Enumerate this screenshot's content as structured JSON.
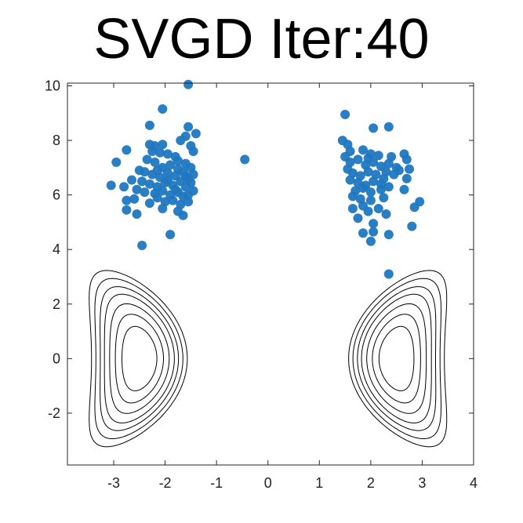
{
  "chart_data": {
    "type": "scatter",
    "title": "SVGD Iter:40",
    "xlabel": "",
    "ylabel": "",
    "xlim": [
      -3.9,
      4.0
    ],
    "ylim": [
      -3.9,
      10.1
    ],
    "xticks": [
      -3,
      -2,
      -1,
      0,
      1,
      2,
      3,
      4
    ],
    "yticks": [
      -2,
      0,
      2,
      4,
      6,
      8,
      10
    ],
    "grid": false,
    "legend": "none",
    "point_color": "#1f77c0",
    "contour_color": "#000000",
    "contour": {
      "description": "two banana-shaped density contour sets",
      "centers_x": [
        -2.5,
        2.5
      ],
      "levels": [
        1.0,
        1.9,
        2.9,
        4.0,
        5.0,
        6.2,
        7.5
      ]
    },
    "points": [
      [
        -1.55,
        10.05
      ],
      [
        -2.05,
        9.15
      ],
      [
        -2.3,
        8.55
      ],
      [
        -1.55,
        8.5
      ],
      [
        -1.4,
        8.25
      ],
      [
        -1.6,
        8.15
      ],
      [
        -2.75,
        7.65
      ],
      [
        -2.95,
        7.2
      ],
      [
        -2.3,
        7.85
      ],
      [
        -2.2,
        7.8
      ],
      [
        -2.05,
        7.85
      ],
      [
        -2.1,
        7.55
      ],
      [
        -2.25,
        7.6
      ],
      [
        -1.95,
        7.5
      ],
      [
        -1.8,
        7.4
      ],
      [
        -1.7,
        8.0
      ],
      [
        -1.5,
        7.8
      ],
      [
        -1.45,
        7.6
      ],
      [
        -2.35,
        7.3
      ],
      [
        -2.2,
        7.2
      ],
      [
        -2.05,
        7.0
      ],
      [
        -1.9,
        7.1
      ],
      [
        -1.75,
        7.25
      ],
      [
        -1.6,
        7.15
      ],
      [
        -1.5,
        7.0
      ],
      [
        -2.5,
        6.9
      ],
      [
        -2.4,
        6.85
      ],
      [
        -2.25,
        6.75
      ],
      [
        -2.1,
        6.65
      ],
      [
        -1.95,
        6.8
      ],
      [
        -1.8,
        6.7
      ],
      [
        -1.65,
        6.85
      ],
      [
        -1.55,
        6.6
      ],
      [
        -1.45,
        6.75
      ],
      [
        -2.65,
        6.55
      ],
      [
        -2.45,
        6.5
      ],
      [
        -2.3,
        6.4
      ],
      [
        -2.15,
        6.3
      ],
      [
        -2.0,
        6.45
      ],
      [
        -1.85,
        6.35
      ],
      [
        -1.7,
        6.5
      ],
      [
        -1.6,
        6.3
      ],
      [
        -1.5,
        6.45
      ],
      [
        -3.05,
        6.35
      ],
      [
        -2.8,
        6.3
      ],
      [
        -2.55,
        6.2
      ],
      [
        -2.4,
        6.1
      ],
      [
        -2.2,
        6.05
      ],
      [
        -2.05,
        6.15
      ],
      [
        -1.9,
        6.0
      ],
      [
        -1.75,
        6.1
      ],
      [
        -1.65,
        5.95
      ],
      [
        -1.55,
        6.0
      ],
      [
        -1.45,
        6.15
      ],
      [
        -2.75,
        5.8
      ],
      [
        -2.6,
        5.85
      ],
      [
        -2.3,
        5.7
      ],
      [
        -2.15,
        5.9
      ],
      [
        -2.0,
        5.75
      ],
      [
        -1.85,
        5.8
      ],
      [
        -1.7,
        5.65
      ],
      [
        -1.55,
        5.75
      ],
      [
        -2.75,
        5.45
      ],
      [
        -2.55,
        5.3
      ],
      [
        -2.05,
        5.5
      ],
      [
        -1.75,
        5.4
      ],
      [
        -1.65,
        5.25
      ],
      [
        -1.9,
        4.55
      ],
      [
        -2.45,
        4.15
      ],
      [
        -1.95,
        6.55
      ],
      [
        -1.8,
        6.2
      ],
      [
        -1.6,
        6.7
      ],
      [
        -2.15,
        6.9
      ],
      [
        -1.75,
        6.95
      ],
      [
        -0.45,
        7.3
      ],
      [
        1.5,
        8.95
      ],
      [
        2.05,
        8.45
      ],
      [
        2.35,
        8.5
      ],
      [
        1.45,
        8.0
      ],
      [
        1.55,
        7.85
      ],
      [
        1.6,
        7.6
      ],
      [
        1.85,
        7.65
      ],
      [
        2.0,
        7.5
      ],
      [
        2.15,
        7.45
      ],
      [
        2.4,
        7.4
      ],
      [
        2.65,
        7.5
      ],
      [
        2.7,
        7.3
      ],
      [
        1.5,
        7.4
      ],
      [
        1.6,
        7.2
      ],
      [
        1.75,
        7.3
      ],
      [
        1.9,
        7.1
      ],
      [
        2.05,
        7.2
      ],
      [
        2.2,
        7.05
      ],
      [
        2.35,
        7.15
      ],
      [
        2.5,
        7.0
      ],
      [
        2.75,
        6.95
      ],
      [
        1.55,
        6.95
      ],
      [
        1.65,
        6.8
      ],
      [
        1.8,
        6.7
      ],
      [
        1.95,
        6.85
      ],
      [
        2.1,
        6.75
      ],
      [
        2.25,
        6.6
      ],
      [
        2.45,
        6.75
      ],
      [
        1.6,
        6.55
      ],
      [
        1.75,
        6.45
      ],
      [
        1.9,
        6.35
      ],
      [
        2.05,
        6.5
      ],
      [
        2.2,
        6.4
      ],
      [
        2.35,
        6.3
      ],
      [
        2.7,
        6.6
      ],
      [
        1.7,
        6.15
      ],
      [
        1.85,
        6.25
      ],
      [
        2.0,
        6.1
      ],
      [
        2.2,
        6.2
      ],
      [
        2.65,
        6.2
      ],
      [
        1.65,
        5.95
      ],
      [
        1.8,
        5.85
      ],
      [
        2.0,
        5.8
      ],
      [
        2.25,
        5.9
      ],
      [
        2.95,
        5.75
      ],
      [
        1.65,
        5.5
      ],
      [
        1.85,
        5.6
      ],
      [
        1.95,
        5.4
      ],
      [
        2.15,
        5.5
      ],
      [
        2.85,
        5.55
      ],
      [
        1.75,
        5.15
      ],
      [
        2.3,
        5.3
      ],
      [
        2.05,
        4.95
      ],
      [
        2.8,
        4.85
      ],
      [
        1.85,
        4.6
      ],
      [
        2.05,
        4.65
      ],
      [
        2.35,
        4.55
      ],
      [
        2.0,
        4.3
      ],
      [
        2.35,
        3.1
      ],
      [
        2.55,
        6.9
      ],
      [
        1.95,
        7.35
      ],
      [
        2.3,
        6.85
      ]
    ]
  }
}
